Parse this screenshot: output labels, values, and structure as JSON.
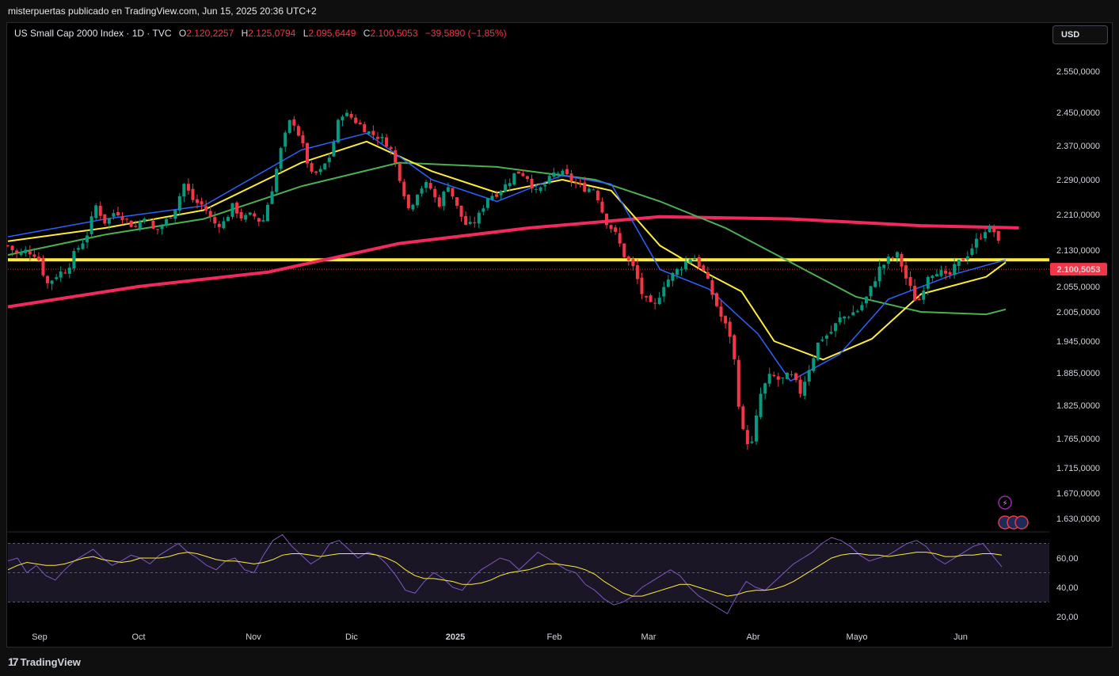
{
  "header": {
    "published": "misterpuertas publicado en TradingView.com, Jun 15, 2025 20:36 UTC+2"
  },
  "legend": {
    "symbol": "US Small Cap 2000 Index · 1D · TVC",
    "open_label": "O",
    "open": "2.120,2257",
    "high_label": "H",
    "high": "2.125,0794",
    "low_label": "L",
    "low": "2.095,6449",
    "close_label": "C",
    "close": "2.100,5053",
    "change": "−39,5890 (−1,85%)"
  },
  "currency": "USD",
  "footer": {
    "brand": "TradingView"
  },
  "colors": {
    "up": "#089981",
    "down": "#f23645",
    "ma_pink": "#f2295e",
    "ma_yellow": "#ffeb3b",
    "ma_green": "#4caf50",
    "ma_blue": "#2962ff",
    "rsi": "#7e57c2"
  },
  "chart_data": {
    "type": "candlestick",
    "price_axis": {
      "ticks": [
        "2.550,0000",
        "2.450,0000",
        "2.370,0000",
        "2.290,0000",
        "2.210,0000",
        "2.130,0000",
        "2.055,0000",
        "2.005,0000",
        "1.945,0000",
        "1.885,0000",
        "1.825,0000",
        "1.765,0000",
        "1.715,0000",
        "1.670,0000",
        "1.630,0000"
      ],
      "tick_values": [
        2550,
        2450,
        2370,
        2290,
        2210,
        2130,
        2055,
        2005,
        1945,
        1885,
        1825,
        1765,
        1715,
        1670,
        1630
      ],
      "last_price_label": "2.100,5053",
      "last_price": 2100.5
    },
    "time_axis": {
      "labels": [
        "Sep",
        "Oct",
        "Nov",
        "Dic",
        "2025",
        "Feb",
        "Mar",
        "Abr",
        "Mayo",
        "Jun"
      ]
    },
    "horizontal_line": 2110,
    "close_points": [
      [
        0,
        2140
      ],
      [
        3,
        2120
      ],
      [
        6,
        2130
      ],
      [
        9,
        2120
      ],
      [
        12,
        2060
      ],
      [
        15,
        2080
      ],
      [
        18,
        2090
      ],
      [
        21,
        2130
      ],
      [
        24,
        2160
      ],
      [
        27,
        2230
      ],
      [
        30,
        2190
      ],
      [
        33,
        2220
      ],
      [
        36,
        2200
      ],
      [
        39,
        2180
      ],
      [
        42,
        2210
      ],
      [
        45,
        2170
      ],
      [
        48,
        2190
      ],
      [
        51,
        2220
      ],
      [
        54,
        2280
      ],
      [
        57,
        2240
      ],
      [
        60,
        2230
      ],
      [
        63,
        2190
      ],
      [
        66,
        2190
      ],
      [
        69,
        2230
      ],
      [
        72,
        2200
      ],
      [
        75,
        2210
      ],
      [
        78,
        2190
      ],
      [
        81,
        2270
      ],
      [
        84,
        2370
      ],
      [
        87,
        2440
      ],
      [
        90,
        2380
      ],
      [
        93,
        2300
      ],
      [
        96,
        2310
      ],
      [
        99,
        2350
      ],
      [
        102,
        2450
      ],
      [
        105,
        2440
      ],
      [
        108,
        2420
      ],
      [
        111,
        2400
      ],
      [
        114,
        2390
      ],
      [
        117,
        2370
      ],
      [
        120,
        2300
      ],
      [
        123,
        2220
      ],
      [
        126,
        2270
      ],
      [
        129,
        2280
      ],
      [
        132,
        2230
      ],
      [
        135,
        2280
      ],
      [
        138,
        2220
      ],
      [
        141,
        2180
      ],
      [
        144,
        2200
      ],
      [
        147,
        2250
      ],
      [
        150,
        2260
      ],
      [
        153,
        2280
      ],
      [
        156,
        2310
      ],
      [
        159,
        2300
      ],
      [
        162,
        2260
      ],
      [
        165,
        2280
      ],
      [
        168,
        2310
      ],
      [
        171,
        2300
      ],
      [
        174,
        2280
      ],
      [
        177,
        2270
      ],
      [
        180,
        2270
      ],
      [
        183,
        2200
      ],
      [
        186,
        2170
      ],
      [
        189,
        2120
      ],
      [
        192,
        2090
      ],
      [
        195,
        2030
      ],
      [
        198,
        2010
      ],
      [
        201,
        2060
      ],
      [
        204,
        2080
      ],
      [
        207,
        2100
      ],
      [
        210,
        2120
      ],
      [
        213,
        2090
      ],
      [
        216,
        2040
      ],
      [
        219,
        1990
      ],
      [
        222,
        1950
      ],
      [
        225,
        1780
      ],
      [
        228,
        1750
      ],
      [
        231,
        1850
      ],
      [
        234,
        1880
      ],
      [
        237,
        1870
      ],
      [
        240,
        1880
      ],
      [
        243,
        1850
      ],
      [
        246,
        1900
      ],
      [
        249,
        1950
      ],
      [
        252,
        1960
      ],
      [
        255,
        1990
      ],
      [
        258,
        2000
      ],
      [
        261,
        2010
      ],
      [
        264,
        2040
      ],
      [
        267,
        2090
      ],
      [
        270,
        2110
      ],
      [
        273,
        2120
      ],
      [
        276,
        2060
      ],
      [
        279,
        2020
      ],
      [
        282,
        2080
      ],
      [
        285,
        2090
      ],
      [
        288,
        2070
      ],
      [
        291,
        2100
      ],
      [
        294,
        2120
      ],
      [
        297,
        2150
      ],
      [
        300,
        2180
      ],
      [
        303,
        2170
      ],
      [
        305,
        2100
      ]
    ],
    "series": [
      {
        "name": "",
        "color": "#f2295e",
        "points": [
          [
            0,
            2015
          ],
          [
            40,
            2055
          ],
          [
            80,
            2085
          ],
          [
            120,
            2145
          ],
          [
            160,
            2180
          ],
          [
            200,
            2205
          ],
          [
            240,
            2200
          ],
          [
            280,
            2185
          ],
          [
            310,
            2180
          ]
        ]
      },
      {
        "name": "",
        "color": "#4caf50",
        "points": [
          [
            0,
            2120
          ],
          [
            30,
            2165
          ],
          [
            60,
            2200
          ],
          [
            90,
            2275
          ],
          [
            120,
            2330
          ],
          [
            150,
            2320
          ],
          [
            180,
            2290
          ],
          [
            200,
            2240
          ],
          [
            220,
            2180
          ],
          [
            240,
            2105
          ],
          [
            260,
            2035
          ],
          [
            280,
            2005
          ],
          [
            300,
            2000
          ],
          [
            306,
            2010
          ]
        ]
      },
      {
        "name": "",
        "color": "#ffeb3b",
        "points": [
          [
            0,
            2150
          ],
          [
            30,
            2180
          ],
          [
            60,
            2220
          ],
          [
            90,
            2330
          ],
          [
            110,
            2380
          ],
          [
            130,
            2310
          ],
          [
            150,
            2260
          ],
          [
            170,
            2290
          ],
          [
            185,
            2265
          ],
          [
            200,
            2140
          ],
          [
            215,
            2080
          ],
          [
            225,
            2045
          ],
          [
            235,
            1945
          ],
          [
            250,
            1910
          ],
          [
            265,
            1950
          ],
          [
            280,
            2040
          ],
          [
            300,
            2075
          ],
          [
            306,
            2105
          ]
        ]
      },
      {
        "name": "",
        "color": "#2962ff",
        "points": [
          [
            0,
            2160
          ],
          [
            30,
            2200
          ],
          [
            60,
            2230
          ],
          [
            90,
            2360
          ],
          [
            110,
            2400
          ],
          [
            130,
            2290
          ],
          [
            150,
            2240
          ],
          [
            170,
            2300
          ],
          [
            185,
            2280
          ],
          [
            200,
            2090
          ],
          [
            215,
            2050
          ],
          [
            230,
            1960
          ],
          [
            240,
            1870
          ],
          [
            255,
            1920
          ],
          [
            270,
            2030
          ],
          [
            290,
            2080
          ],
          [
            306,
            2110
          ]
        ]
      }
    ],
    "rsi": {
      "axis_ticks": [
        "60,00",
        "40,00",
        "20,00"
      ],
      "upper": 70,
      "mid": 50,
      "lower": 30,
      "values": [
        58,
        60,
        50,
        55,
        48,
        45,
        52,
        58,
        62,
        66,
        60,
        55,
        58,
        62,
        60,
        56,
        62,
        66,
        70,
        64,
        60,
        55,
        52,
        58,
        60,
        52,
        50,
        62,
        72,
        76,
        68,
        62,
        56,
        60,
        70,
        72,
        66,
        60,
        64,
        62,
        56,
        48,
        38,
        36,
        44,
        50,
        46,
        40,
        38,
        46,
        52,
        56,
        60,
        58,
        52,
        58,
        64,
        60,
        56,
        52,
        50,
        42,
        38,
        32,
        28,
        30,
        34,
        40,
        44,
        48,
        52,
        48,
        40,
        34,
        30,
        26,
        22,
        34,
        44,
        40,
        38,
        44,
        50,
        56,
        60,
        64,
        70,
        74,
        72,
        68,
        62,
        58,
        60,
        62,
        66,
        70,
        72,
        68,
        60,
        56,
        60,
        64,
        68,
        70,
        62,
        54
      ],
      "avg_values": [
        52,
        55,
        57,
        56,
        55,
        55,
        56,
        58,
        60,
        61,
        59,
        58,
        57,
        58,
        60,
        60,
        60,
        61,
        63,
        64,
        63,
        61,
        59,
        58,
        58,
        57,
        56,
        57,
        59,
        62,
        63,
        63,
        62,
        61,
        62,
        63,
        63,
        63,
        63,
        62,
        60,
        57,
        52,
        48,
        46,
        46,
        45,
        44,
        42,
        42,
        43,
        45,
        48,
        50,
        51,
        52,
        54,
        56,
        56,
        55,
        54,
        52,
        49,
        44,
        40,
        36,
        34,
        34,
        36,
        38,
        40,
        42,
        42,
        40,
        38,
        36,
        34,
        35,
        37,
        38,
        38,
        39,
        41,
        44,
        48,
        52,
        56,
        60,
        62,
        63,
        63,
        62,
        62,
        61,
        62,
        63,
        64,
        64,
        63,
        61,
        61,
        62,
        62,
        63,
        63,
        62
      ]
    }
  }
}
